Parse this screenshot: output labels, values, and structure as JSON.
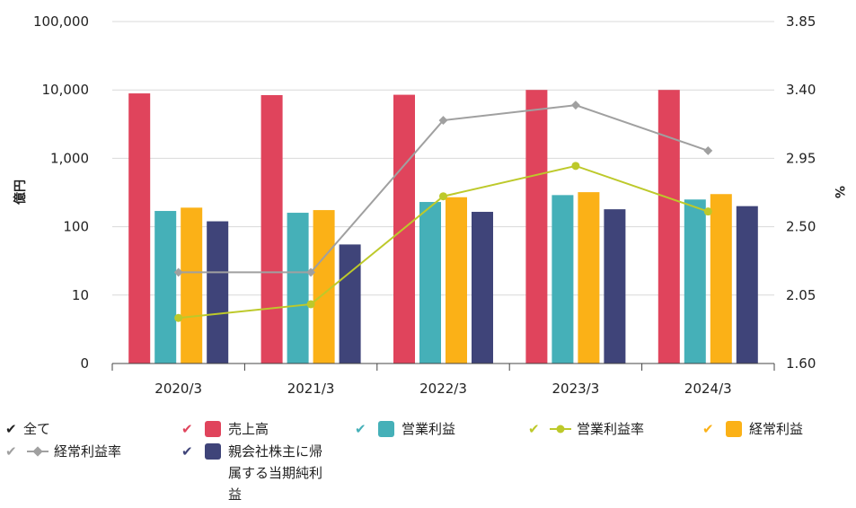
{
  "chart_data": {
    "type": "bar",
    "categories": [
      "2020/3",
      "2021/3",
      "2022/3",
      "2023/3",
      "2024/3"
    ],
    "left_axis": {
      "title": "億円",
      "scale": "log",
      "tick_labels": [
        "0",
        "10",
        "100",
        "1,000",
        "10,000",
        "100,000"
      ]
    },
    "right_axis": {
      "title": "%",
      "range": [
        1.6,
        3.85
      ],
      "tick_labels": [
        "1.60",
        "2.05",
        "2.50",
        "2.95",
        "3.40",
        "3.85"
      ]
    },
    "series": [
      {
        "name": "売上高",
        "type": "bar",
        "axis": "left",
        "color": "#e0445c",
        "values": [
          8900,
          8400,
          8500,
          10000,
          10000
        ]
      },
      {
        "name": "営業利益",
        "type": "bar",
        "axis": "left",
        "color": "#45b0b8",
        "values": [
          170,
          160,
          230,
          290,
          250
        ]
      },
      {
        "name": "経常利益",
        "type": "bar",
        "axis": "left",
        "color": "#fbb117",
        "values": [
          190,
          175,
          270,
          320,
          300
        ]
      },
      {
        "name": "親会社株主に帰属する当期純利益",
        "type": "bar",
        "axis": "left",
        "color": "#3f4479",
        "values": [
          120,
          55,
          165,
          180,
          200
        ]
      },
      {
        "name": "営業利益率",
        "type": "line",
        "axis": "right",
        "color": "#bdc92a",
        "values": [
          1.9,
          1.99,
          2.7,
          2.9,
          2.6
        ]
      },
      {
        "name": "経常利益率",
        "type": "line",
        "axis": "right",
        "color": "#a0a0a0",
        "values": [
          2.2,
          2.2,
          3.2,
          3.3,
          3.0
        ]
      }
    ],
    "grid": true
  },
  "legend": {
    "all_label": "全て",
    "items": [
      {
        "label": "売上高",
        "color": "#e0445c",
        "kind": "bar"
      },
      {
        "label": "営業利益",
        "color": "#45b0b8",
        "kind": "bar"
      },
      {
        "label": "営業利益率",
        "color": "#bdc92a",
        "kind": "line"
      },
      {
        "label": "経常利益",
        "color": "#fbb117",
        "kind": "bar"
      },
      {
        "label": "経常利益率",
        "color": "#a0a0a0",
        "kind": "line"
      },
      {
        "label": "親会社株主に帰属する当期純利益",
        "color": "#3f4479",
        "kind": "bar"
      }
    ]
  }
}
